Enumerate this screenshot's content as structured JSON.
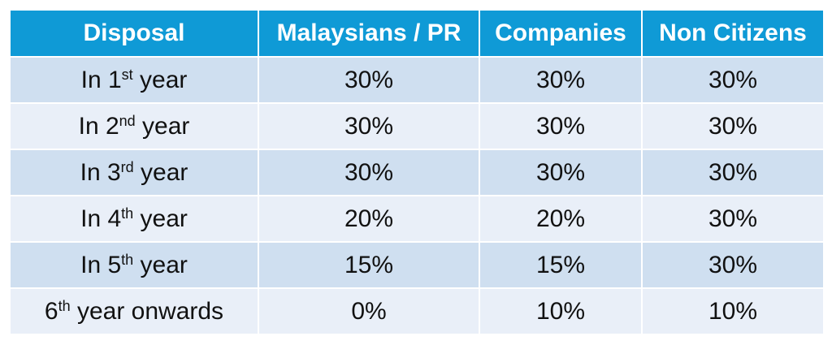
{
  "table": {
    "headers": [
      "Disposal",
      "Malaysians / PR",
      "Companies",
      "Non Citizens"
    ],
    "rows": [
      {
        "disposal": {
          "prefix": "In 1",
          "sup": "st",
          "suffix": " year"
        },
        "malaysians_pr": "30%",
        "companies": "30%",
        "non_citizens": "30%"
      },
      {
        "disposal": {
          "prefix": "In 2",
          "sup": "nd",
          "suffix": " year"
        },
        "malaysians_pr": "30%",
        "companies": "30%",
        "non_citizens": "30%"
      },
      {
        "disposal": {
          "prefix": "In 3",
          "sup": "rd",
          "suffix": " year"
        },
        "malaysians_pr": "30%",
        "companies": "30%",
        "non_citizens": "30%"
      },
      {
        "disposal": {
          "prefix": "In 4",
          "sup": "th",
          "suffix": " year"
        },
        "malaysians_pr": "20%",
        "companies": "20%",
        "non_citizens": "30%"
      },
      {
        "disposal": {
          "prefix": "In 5",
          "sup": "th",
          "suffix": " year"
        },
        "malaysians_pr": "15%",
        "companies": "15%",
        "non_citizens": "30%"
      },
      {
        "disposal": {
          "prefix": "6",
          "sup": "th",
          "suffix": " year onwards"
        },
        "malaysians_pr": "0%",
        "companies": "10%",
        "non_citizens": "10%"
      }
    ]
  },
  "colors": {
    "header_bg": "#0f9ad6",
    "row_odd_bg": "#cfdff0",
    "row_even_bg": "#e9eff8",
    "text": "#111111"
  }
}
